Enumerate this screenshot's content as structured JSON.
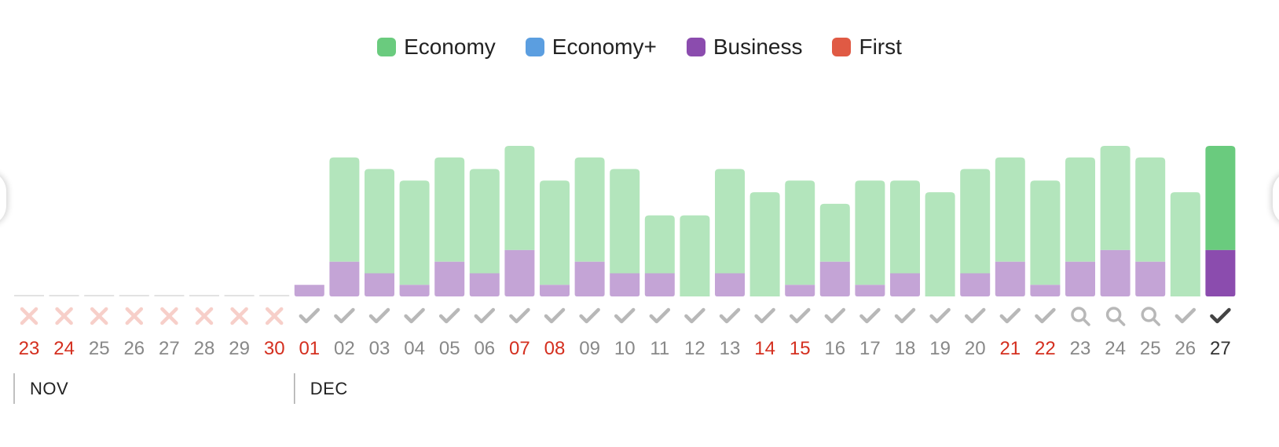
{
  "legend": [
    {
      "label": "Economy",
      "color": "#6acb7e"
    },
    {
      "label": "Economy+",
      "color": "#5b9ee0"
    },
    {
      "label": "Business",
      "color": "#8b4cae"
    },
    {
      "label": "First",
      "color": "#e05a44"
    }
  ],
  "colors": {
    "economy": "#b3e5bc",
    "business": "#c4a4d6",
    "economy_selected": "#6acb7e",
    "business_selected": "#8b4cae",
    "unavailable_icon": "#f7cfc9",
    "check_icon": "#b8b8b8",
    "check_selected": "#444444",
    "weekend_text": "#d42f1f",
    "normal_text": "#888888",
    "selected_text": "#333333",
    "empty_line": "#e2e2e2"
  },
  "chart_data": {
    "type": "bar",
    "stacked": true,
    "series_names": [
      "Economy",
      "Business"
    ],
    "ylim": [
      0,
      13
    ],
    "selected_index": 34,
    "months": [
      {
        "label": "NOV",
        "start_index": 0
      },
      {
        "label": "DEC",
        "start_index": 8
      }
    ],
    "days": [
      {
        "label": "23",
        "weekend": true,
        "status": "unavailable",
        "economy": 0,
        "business": 0
      },
      {
        "label": "24",
        "weekend": true,
        "status": "unavailable",
        "economy": 0,
        "business": 0
      },
      {
        "label": "25",
        "weekend": false,
        "status": "unavailable",
        "economy": 0,
        "business": 0
      },
      {
        "label": "26",
        "weekend": false,
        "status": "unavailable",
        "economy": 0,
        "business": 0
      },
      {
        "label": "27",
        "weekend": false,
        "status": "unavailable",
        "economy": 0,
        "business": 0
      },
      {
        "label": "28",
        "weekend": false,
        "status": "unavailable",
        "economy": 0,
        "business": 0
      },
      {
        "label": "29",
        "weekend": false,
        "status": "unavailable",
        "economy": 0,
        "business": 0
      },
      {
        "label": "30",
        "weekend": true,
        "status": "unavailable",
        "economy": 0,
        "business": 0
      },
      {
        "label": "01",
        "weekend": true,
        "status": "available",
        "economy": 1,
        "business": 1
      },
      {
        "label": "02",
        "weekend": false,
        "status": "available",
        "economy": 12,
        "business": 3
      },
      {
        "label": "03",
        "weekend": false,
        "status": "available",
        "economy": 11,
        "business": 2
      },
      {
        "label": "04",
        "weekend": false,
        "status": "available",
        "economy": 10,
        "business": 1
      },
      {
        "label": "05",
        "weekend": false,
        "status": "available",
        "economy": 12,
        "business": 3
      },
      {
        "label": "06",
        "weekend": false,
        "status": "available",
        "economy": 11,
        "business": 2
      },
      {
        "label": "07",
        "weekend": true,
        "status": "available",
        "economy": 13,
        "business": 4
      },
      {
        "label": "08",
        "weekend": true,
        "status": "available",
        "economy": 10,
        "business": 1
      },
      {
        "label": "09",
        "weekend": false,
        "status": "available",
        "economy": 12,
        "business": 3
      },
      {
        "label": "10",
        "weekend": false,
        "status": "available",
        "economy": 11,
        "business": 2
      },
      {
        "label": "11",
        "weekend": false,
        "status": "available",
        "economy": 7,
        "business": 2
      },
      {
        "label": "12",
        "weekend": false,
        "status": "available",
        "economy": 7,
        "business": 0
      },
      {
        "label": "13",
        "weekend": false,
        "status": "available",
        "economy": 11,
        "business": 2
      },
      {
        "label": "14",
        "weekend": true,
        "status": "available",
        "economy": 9,
        "business": 0
      },
      {
        "label": "15",
        "weekend": true,
        "status": "available",
        "economy": 10,
        "business": 1
      },
      {
        "label": "16",
        "weekend": false,
        "status": "available",
        "economy": 8,
        "business": 3
      },
      {
        "label": "17",
        "weekend": false,
        "status": "available",
        "economy": 10,
        "business": 1
      },
      {
        "label": "18",
        "weekend": false,
        "status": "available",
        "economy": 10,
        "business": 2
      },
      {
        "label": "19",
        "weekend": false,
        "status": "available",
        "economy": 9,
        "business": 0
      },
      {
        "label": "20",
        "weekend": false,
        "status": "available",
        "economy": 11,
        "business": 2
      },
      {
        "label": "21",
        "weekend": true,
        "status": "available",
        "economy": 12,
        "business": 3
      },
      {
        "label": "22",
        "weekend": true,
        "status": "available",
        "economy": 10,
        "business": 1
      },
      {
        "label": "23",
        "weekend": false,
        "status": "searching",
        "economy": 12,
        "business": 3
      },
      {
        "label": "24",
        "weekend": false,
        "status": "searching",
        "economy": 13,
        "business": 4
      },
      {
        "label": "25",
        "weekend": false,
        "status": "searching",
        "economy": 12,
        "business": 3
      },
      {
        "label": "26",
        "weekend": false,
        "status": "available",
        "economy": 9,
        "business": 0
      },
      {
        "label": "27",
        "weekend": false,
        "status": "available",
        "economy": 13,
        "business": 4
      }
    ]
  }
}
